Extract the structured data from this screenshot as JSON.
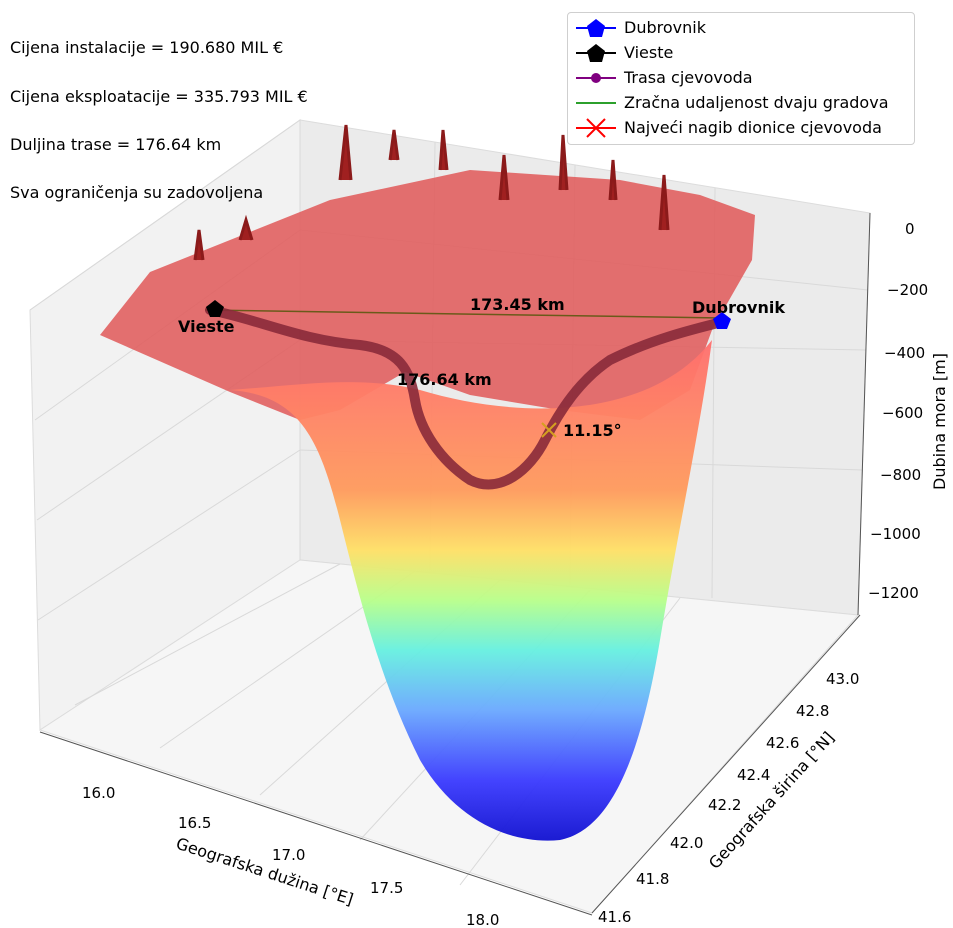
{
  "info": {
    "install_cost": "Cijena instalacije = 190.680 MIL €",
    "operating_cost": "Cijena eksploatacije = 335.793 MIL €",
    "route_length": "Duljina trase = 176.64 km",
    "constraints": "Sva ograničenja su zadovoljena"
  },
  "legend": [
    {
      "label": "Dubrovnik",
      "color": "#0000ff",
      "marker": "pentagon"
    },
    {
      "label": "Vieste",
      "color": "#000000",
      "marker": "pentagon"
    },
    {
      "label": "Trasa cjevovoda",
      "color": "#800080",
      "marker": "line-dot"
    },
    {
      "label": "Zračna udaljenost dvaju gradova",
      "color": "#2ca02c",
      "marker": "line"
    },
    {
      "label": "Najveći nagib dionice cjevovoda",
      "color": "#ff0000",
      "marker": "x"
    }
  ],
  "chart_data": {
    "type": "surface3d",
    "title": "",
    "xlabel": "Geografska dužina [°E]",
    "ylabel": "Geografska širina [°N]",
    "zlabel": "Dubina mora [m]",
    "x_ticks": [
      "16.0",
      "16.5",
      "17.0",
      "17.5",
      "18.0"
    ],
    "y_ticks": [
      "41.6",
      "41.8",
      "42.0",
      "42.2",
      "42.4",
      "42.6",
      "42.8",
      "43.0"
    ],
    "z_ticks": [
      "0",
      "−200",
      "−400",
      "−600",
      "−800",
      "−1000",
      "−1200"
    ],
    "zlim": [
      -1300,
      0
    ],
    "colormap": "jet",
    "cities": [
      {
        "name": "Vieste",
        "label": "Vieste",
        "lon": 16.18,
        "lat": 41.88
      },
      {
        "name": "Dubrovnik",
        "label": "Dubrovnik",
        "lon": 18.09,
        "lat": 42.65
      }
    ],
    "air_distance_label": "173.45 km",
    "route_length_label": "176.64 km",
    "max_slope_label": "11.15°",
    "grid": true
  }
}
